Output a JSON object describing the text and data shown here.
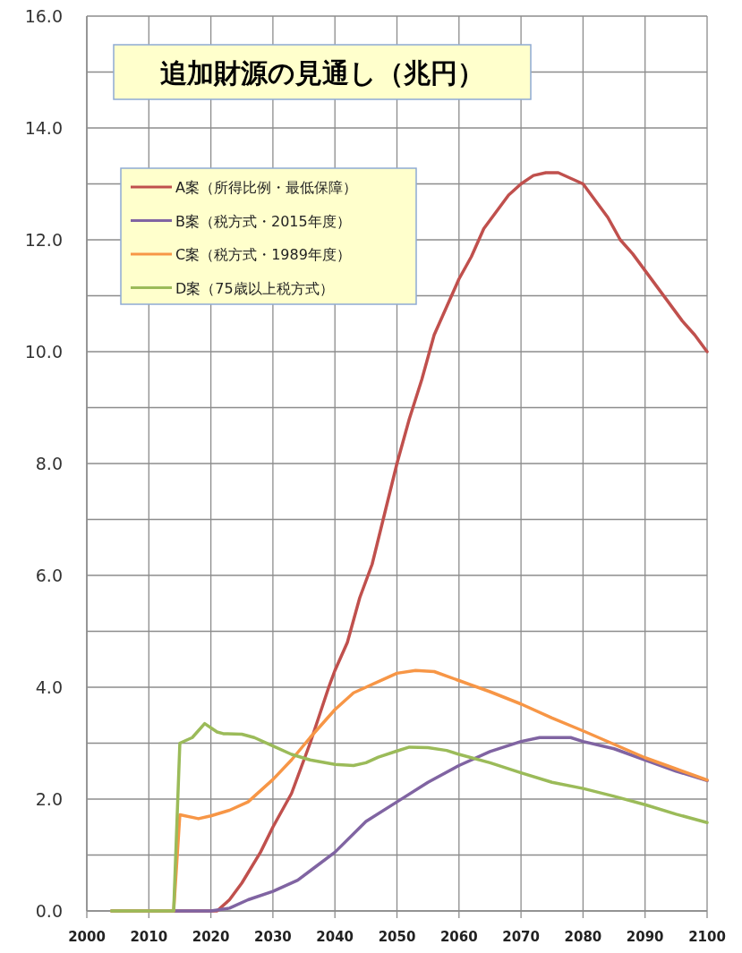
{
  "chart_data": {
    "type": "line",
    "title": "追加財源の見通し（兆円）",
    "xlim": [
      2000,
      2100
    ],
    "xticks": [
      2000,
      2010,
      2020,
      2030,
      2040,
      2050,
      2060,
      2070,
      2080,
      2090,
      2100
    ],
    "ylim": [
      0,
      16
    ],
    "yticks": [
      {
        "value": 0,
        "label": "0.0"
      },
      {
        "value": 1,
        "label": null
      },
      {
        "value": 2,
        "label": "2.0"
      },
      {
        "value": 3,
        "label": null
      },
      {
        "value": 4,
        "label": "4.0"
      },
      {
        "value": 5,
        "label": null
      },
      {
        "value": 6,
        "label": "6.0"
      },
      {
        "value": 7,
        "label": null
      },
      {
        "value": 8,
        "label": "8.0"
      },
      {
        "value": 9,
        "label": null
      },
      {
        "value": 10,
        "label": "10.0"
      },
      {
        "value": 11,
        "label": null
      },
      {
        "value": 12,
        "label": "12.0"
      },
      {
        "value": 13,
        "label": null
      },
      {
        "value": 14,
        "label": "14.0"
      },
      {
        "value": 15,
        "label": null
      },
      {
        "value": 16,
        "label": "16.0"
      }
    ],
    "grid": true,
    "legend": "top left",
    "marker": "none",
    "line_style": "solid",
    "series": [
      {
        "name": "A案（所得比例・最低保障）",
        "color": "#c0504d",
        "x": [
          2004,
          2014,
          2020,
          2021,
          2023,
          2025,
          2028,
          2030,
          2033,
          2036,
          2039,
          2040,
          2042,
          2044,
          2046,
          2048,
          2050,
          2052,
          2054,
          2056,
          2058,
          2060,
          2062,
          2064,
          2066,
          2068,
          2070,
          2072,
          2074,
          2076,
          2078,
          2080,
          2082,
          2084,
          2086,
          2088,
          2090,
          2092,
          2094,
          2096,
          2098,
          2100
        ],
        "values": [
          0,
          0,
          0,
          0,
          0.2,
          0.5,
          1.05,
          1.5,
          2.1,
          3.0,
          4.0,
          4.3,
          4.8,
          5.6,
          6.2,
          7.1,
          8.0,
          8.8,
          9.5,
          10.3,
          10.8,
          11.3,
          11.7,
          12.2,
          12.5,
          12.8,
          13.0,
          13.15,
          13.2,
          13.2,
          13.1,
          13.0,
          12.7,
          12.4,
          12.0,
          11.75,
          11.45,
          11.15,
          10.85,
          10.55,
          10.3,
          10.0
        ]
      },
      {
        "name": "B案（税方式・2015年度）",
        "color": "#8064a2",
        "x": [
          2004,
          2014,
          2020,
          2023,
          2026,
          2030,
          2034,
          2037,
          2040,
          2045,
          2050,
          2055,
          2060,
          2065,
          2070,
          2073,
          2078,
          2080,
          2085,
          2090,
          2095,
          2100
        ],
        "values": [
          0,
          0,
          0,
          0.05,
          0.2,
          0.35,
          0.55,
          0.8,
          1.05,
          1.6,
          1.95,
          2.3,
          2.6,
          2.85,
          3.03,
          3.1,
          3.1,
          3.03,
          2.9,
          2.7,
          2.5,
          2.33
        ]
      },
      {
        "name": "C案（税方式・1989年度）",
        "color": "#f79646",
        "x": [
          2004,
          2014,
          2015,
          2018,
          2020,
          2023,
          2026,
          2030,
          2033,
          2036,
          2040,
          2043,
          2045,
          2048,
          2050,
          2053,
          2056,
          2060,
          2065,
          2070,
          2075,
          2080,
          2085,
          2090,
          2095,
          2100
        ],
        "values": [
          0,
          0,
          1.72,
          1.65,
          1.7,
          1.8,
          1.95,
          2.35,
          2.7,
          3.1,
          3.6,
          3.9,
          4.0,
          4.15,
          4.25,
          4.3,
          4.28,
          4.12,
          3.92,
          3.7,
          3.45,
          3.22,
          2.98,
          2.74,
          2.54,
          2.34
        ]
      },
      {
        "name": "D案（75歳以上税方式）",
        "color": "#9bbb59",
        "x": [
          2004,
          2014,
          2015,
          2017,
          2019,
          2021,
          2022,
          2025,
          2027,
          2030,
          2033,
          2036,
          2040,
          2043,
          2045,
          2047,
          2050,
          2052,
          2055,
          2058,
          2060,
          2065,
          2070,
          2075,
          2080,
          2085,
          2090,
          2095,
          2100
        ],
        "values": [
          0,
          0,
          3.0,
          3.1,
          3.35,
          3.2,
          3.17,
          3.16,
          3.1,
          2.95,
          2.8,
          2.7,
          2.62,
          2.6,
          2.65,
          2.75,
          2.86,
          2.93,
          2.92,
          2.87,
          2.8,
          2.65,
          2.47,
          2.3,
          2.19,
          2.05,
          1.9,
          1.73,
          1.58
        ]
      }
    ]
  }
}
